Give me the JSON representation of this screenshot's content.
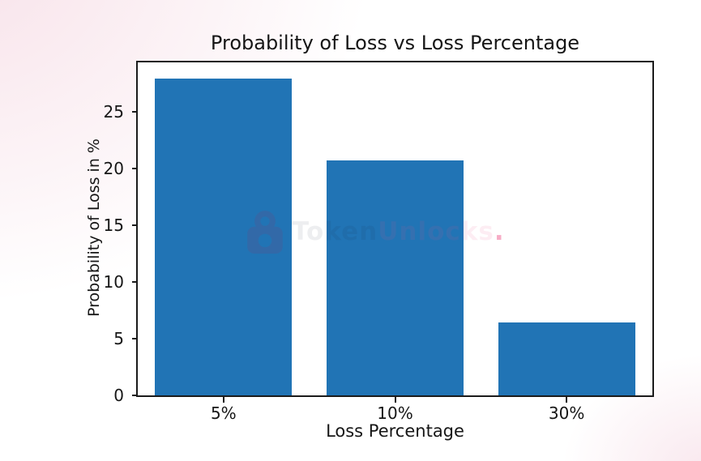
{
  "chart_data": {
    "type": "bar",
    "title": "Probability of Loss vs Loss Percentage",
    "xlabel": "Loss Percentage",
    "ylabel": "Probability of Loss in %",
    "categories": [
      "5%",
      "10%",
      "30%"
    ],
    "values": [
      27.9,
      20.7,
      6.4
    ],
    "yticks": [
      0,
      5,
      10,
      15,
      20,
      25
    ],
    "ylim": [
      0,
      29.36
    ],
    "bar_relative_width": 0.8,
    "grid": false,
    "legend": false,
    "bar_color": "#2174b5",
    "spine_color": "#1b1b1b",
    "text_color": "#161616"
  },
  "watermark": {
    "icon": "padlock-icon",
    "text_primary": "Token",
    "text_secondary": "Unlocks",
    "text_suffix": ".",
    "icon_color": "#a3285a",
    "color_primary": "rgba(30,40,60,0.08)",
    "color_secondary": "rgba(235,80,140,0.10)",
    "color_suffix": "rgba(235,60,120,0.42)"
  },
  "background": {
    "base": "#ffffff",
    "accent_top_left": "#f6dce5",
    "accent_bottom_right": "#f8e5ec"
  }
}
